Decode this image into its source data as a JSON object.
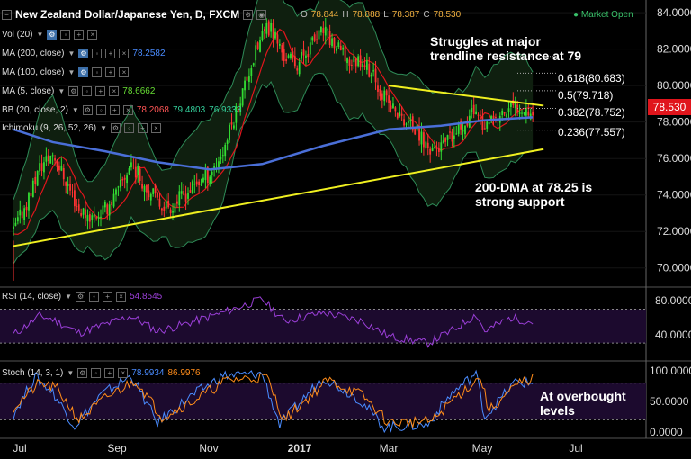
{
  "header": {
    "title": "New Zealand Dollar/Japanese Yen, D, FXCM",
    "open_label": "O",
    "open": "78.844",
    "high_label": "H",
    "high": "78.888",
    "low_label": "L",
    "low": "78.387",
    "close_label": "C",
    "close": "78.530",
    "market_status": "Market Open"
  },
  "indicators": [
    {
      "label": "Vol (20)",
      "value": "",
      "color": "#cccccc"
    },
    {
      "label": "MA (200, close)",
      "value": "78.2582",
      "color": "#4a8cff"
    },
    {
      "label": "MA (100, close)",
      "value": "",
      "color": "#cccccc"
    },
    {
      "label": "MA (5, close)",
      "value": "78.6662",
      "color": "#66dd33"
    },
    {
      "label": "BB (20, close, 2)",
      "values": [
        "78.2068",
        "79.4803",
        "76.9333"
      ],
      "colors": [
        "#ff5555",
        "#33cc99",
        "#33cc99"
      ]
    },
    {
      "label": "Ichimoku (9, 26, 52, 26)",
      "value": "",
      "color": "#cccccc"
    }
  ],
  "annotations": {
    "resistance": "Struggles at major trendline resistance at 79",
    "support": "200-DMA at 78.25 is strong support",
    "overbought": "At overbought levels"
  },
  "fib_levels": [
    {
      "label": "0.618(80.683)",
      "value": 80.683
    },
    {
      "label": "0.5(79.718)",
      "value": 79.718
    },
    {
      "label": "0.382(78.752)",
      "value": 78.752
    },
    {
      "label": "0.236(77.557)",
      "value": 77.557
    }
  ],
  "current_price": "78.530",
  "rsi_label": "RSI (14, close)",
  "rsi_value": "54.8545",
  "stoch_label": "Stoch (14, 3, 1)",
  "stoch_values": [
    "78.9934",
    "86.9976"
  ],
  "colors": {
    "up": "#33dd33",
    "down": "#ff3333",
    "ma200": "#4a6fd8",
    "bb": "#2e8b57",
    "ma_red": "#e0151c",
    "trend": "#f0f020",
    "rsi": "#9b3fd8",
    "stoch_k": "#4a8cff",
    "stoch_d": "#ff8c1a",
    "pane_fill": "#1c0a2e"
  },
  "chart_data": [
    {
      "type": "candlestick",
      "title": "New Zealand Dollar/Japanese Yen, D, FXCM",
      "x_tick_labels": [
        "Jul",
        "Sep",
        "Nov",
        "2017",
        "Mar",
        "May",
        "Jul"
      ],
      "y_tick_labels": [
        "84.0000",
        "82.0000",
        "80.0000",
        "78.0000",
        "76.0000",
        "74.0000",
        "72.0000",
        "70.0000"
      ],
      "ylim": [
        69.0,
        84.5
      ],
      "close_path": [
        {
          "x": 0,
          "y": 72.0
        },
        {
          "x": 6,
          "y": 73.6
        },
        {
          "x": 12,
          "y": 75.5
        },
        {
          "x": 18,
          "y": 76.3
        },
        {
          "x": 24,
          "y": 74.8
        },
        {
          "x": 30,
          "y": 73.2
        },
        {
          "x": 36,
          "y": 72.8
        },
        {
          "x": 42,
          "y": 73.2
        },
        {
          "x": 48,
          "y": 74.2
        },
        {
          "x": 54,
          "y": 75.8
        },
        {
          "x": 60,
          "y": 74.6
        },
        {
          "x": 66,
          "y": 73.6
        },
        {
          "x": 72,
          "y": 73.4
        },
        {
          "x": 78,
          "y": 74.0
        },
        {
          "x": 84,
          "y": 74.6
        },
        {
          "x": 90,
          "y": 75.2
        },
        {
          "x": 96,
          "y": 76.4
        },
        {
          "x": 102,
          "y": 78.6
        },
        {
          "x": 108,
          "y": 80.8
        },
        {
          "x": 114,
          "y": 82.8
        },
        {
          "x": 118,
          "y": 83.2
        },
        {
          "x": 124,
          "y": 81.6
        },
        {
          "x": 130,
          "y": 81.2
        },
        {
          "x": 136,
          "y": 82.2
        },
        {
          "x": 142,
          "y": 83.0
        },
        {
          "x": 148,
          "y": 82.1
        },
        {
          "x": 154,
          "y": 81.3
        },
        {
          "x": 160,
          "y": 81.5
        },
        {
          "x": 166,
          "y": 80.2
        },
        {
          "x": 172,
          "y": 79.0
        },
        {
          "x": 178,
          "y": 78.2
        },
        {
          "x": 184,
          "y": 77.6
        },
        {
          "x": 190,
          "y": 76.6
        },
        {
          "x": 196,
          "y": 76.6
        },
        {
          "x": 202,
          "y": 77.2
        },
        {
          "x": 208,
          "y": 78.2
        },
        {
          "x": 212,
          "y": 78.8
        },
        {
          "x": 216,
          "y": 77.6
        },
        {
          "x": 222,
          "y": 78.2
        },
        {
          "x": 228,
          "y": 78.8
        },
        {
          "x": 234,
          "y": 78.9
        },
        {
          "x": 238,
          "y": 78.53
        }
      ],
      "ma200": [
        {
          "x": 0,
          "y": 77.6
        },
        {
          "x": 18,
          "y": 76.9
        },
        {
          "x": 42,
          "y": 76.4
        },
        {
          "x": 66,
          "y": 75.8
        },
        {
          "x": 90,
          "y": 75.4
        },
        {
          "x": 114,
          "y": 75.7
        },
        {
          "x": 142,
          "y": 76.7
        },
        {
          "x": 172,
          "y": 77.6
        },
        {
          "x": 196,
          "y": 77.8
        },
        {
          "x": 216,
          "y": 78.1
        },
        {
          "x": 238,
          "y": 78.26
        }
      ],
      "trendlines": [
        {
          "name": "support",
          "from": {
            "x": 0,
            "y": 71.2
          },
          "to": {
            "x": 238,
            "y": 76.5
          }
        },
        {
          "name": "resistance",
          "from": {
            "x": 172,
            "y": 80.0
          },
          "to": {
            "x": 238,
            "y": 78.9
          }
        }
      ]
    },
    {
      "type": "line",
      "title": "RSI (14, close)",
      "y_tick_labels": [
        "80.0000",
        "40.0000"
      ],
      "ylim": [
        10,
        95
      ],
      "bands": [
        70,
        30
      ],
      "values": [
        {
          "x": 0,
          "y": 40
        },
        {
          "x": 12,
          "y": 62
        },
        {
          "x": 18,
          "y": 58
        },
        {
          "x": 30,
          "y": 42
        },
        {
          "x": 42,
          "y": 52
        },
        {
          "x": 54,
          "y": 62
        },
        {
          "x": 66,
          "y": 44
        },
        {
          "x": 78,
          "y": 52
        },
        {
          "x": 96,
          "y": 66
        },
        {
          "x": 114,
          "y": 82
        },
        {
          "x": 124,
          "y": 56
        },
        {
          "x": 142,
          "y": 66
        },
        {
          "x": 160,
          "y": 56
        },
        {
          "x": 172,
          "y": 38
        },
        {
          "x": 190,
          "y": 30
        },
        {
          "x": 202,
          "y": 46
        },
        {
          "x": 212,
          "y": 64
        },
        {
          "x": 216,
          "y": 44
        },
        {
          "x": 228,
          "y": 60
        },
        {
          "x": 238,
          "y": 54.85
        }
      ]
    },
    {
      "type": "line",
      "title": "Stoch (14, 3, 1)",
      "y_tick_labels": [
        "100.0000",
        "50.0000",
        "0.0000"
      ],
      "ylim": [
        0,
        100
      ],
      "bands": [
        80,
        20
      ],
      "series": [
        {
          "name": "K",
          "values": [
            {
              "x": 0,
              "y": 30
            },
            {
              "x": 10,
              "y": 90
            },
            {
              "x": 18,
              "y": 65
            },
            {
              "x": 28,
              "y": 10
            },
            {
              "x": 40,
              "y": 60
            },
            {
              "x": 54,
              "y": 92
            },
            {
              "x": 66,
              "y": 15
            },
            {
              "x": 80,
              "y": 55
            },
            {
              "x": 96,
              "y": 92
            },
            {
              "x": 114,
              "y": 95
            },
            {
              "x": 122,
              "y": 12
            },
            {
              "x": 142,
              "y": 90
            },
            {
              "x": 158,
              "y": 55
            },
            {
              "x": 170,
              "y": 8
            },
            {
              "x": 190,
              "y": 12
            },
            {
              "x": 200,
              "y": 60
            },
            {
              "x": 212,
              "y": 96
            },
            {
              "x": 216,
              "y": 25
            },
            {
              "x": 230,
              "y": 82
            },
            {
              "x": 238,
              "y": 78.99
            }
          ]
        },
        {
          "name": "D",
          "values": [
            {
              "x": 0,
              "y": 40
            },
            {
              "x": 12,
              "y": 80
            },
            {
              "x": 20,
              "y": 70
            },
            {
              "x": 30,
              "y": 20
            },
            {
              "x": 42,
              "y": 55
            },
            {
              "x": 56,
              "y": 85
            },
            {
              "x": 68,
              "y": 25
            },
            {
              "x": 82,
              "y": 50
            },
            {
              "x": 98,
              "y": 85
            },
            {
              "x": 116,
              "y": 90
            },
            {
              "x": 124,
              "y": 20
            },
            {
              "x": 144,
              "y": 85
            },
            {
              "x": 160,
              "y": 60
            },
            {
              "x": 172,
              "y": 15
            },
            {
              "x": 192,
              "y": 18
            },
            {
              "x": 202,
              "y": 55
            },
            {
              "x": 214,
              "y": 90
            },
            {
              "x": 218,
              "y": 35
            },
            {
              "x": 232,
              "y": 80
            },
            {
              "x": 238,
              "y": 87.0
            }
          ]
        }
      ]
    }
  ]
}
